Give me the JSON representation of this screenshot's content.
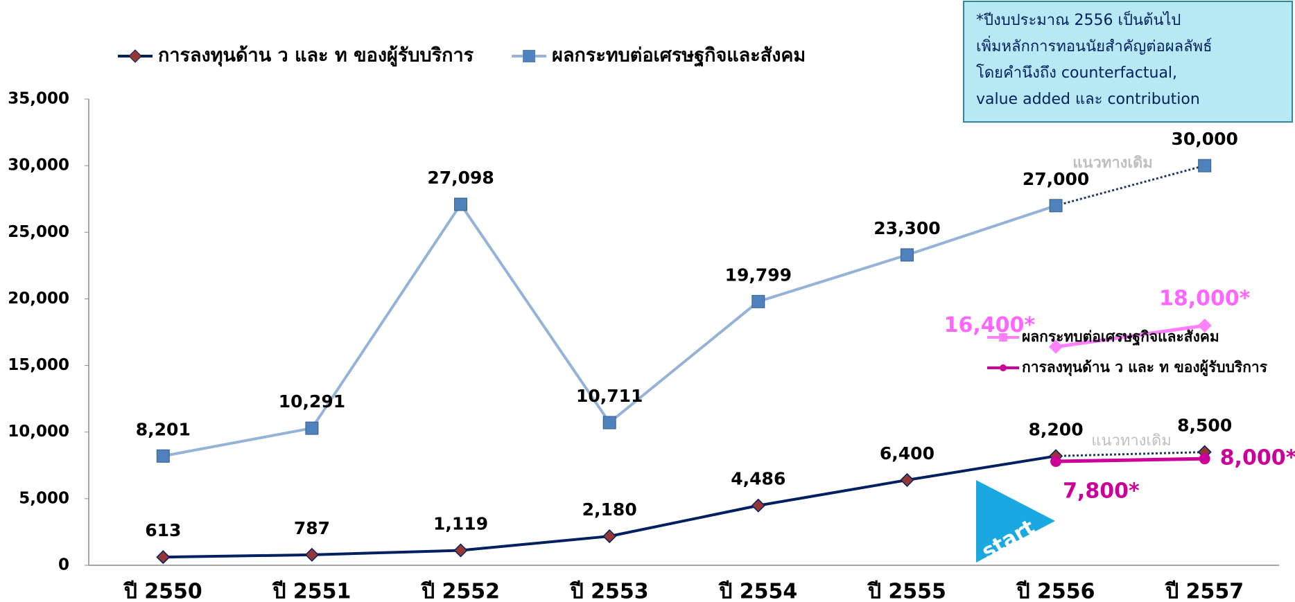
{
  "chart_data": {
    "type": "line",
    "categories": [
      "ปี 2550",
      "ปี 2551",
      "ปี 2552",
      "ปี 2553",
      "ปี 2554",
      "ปี 2555",
      "ปี 2556",
      "ปี 2557"
    ],
    "ylim": [
      0,
      35000
    ],
    "yticks": [
      0,
      {
        "value": 5000,
        "label": "5,000"
      },
      {
        "value": 10000,
        "label": "10,000"
      },
      {
        "value": 15000,
        "label": "15,000"
      },
      {
        "value": 20000,
        "label": "20,000"
      },
      {
        "value": 25000,
        "label": "25,000"
      },
      {
        "value": 30000,
        "label": "30,000"
      },
      {
        "value": 35000,
        "label": "35,000"
      }
    ],
    "grid": false,
    "series": [
      {
        "name": "การลงทุนด้าน ว และ ท ของผู้รับบริการ",
        "color": "#002060",
        "marker": "diamond",
        "marker_color": "#953735",
        "legend": "top",
        "dashed_last_segment": true,
        "values": [
          613,
          787,
          1119,
          2180,
          4486,
          6400,
          8200,
          8500
        ],
        "value_labels": [
          "613",
          "787",
          "1,119",
          "2,180",
          "4,486",
          "6,400",
          "8,200",
          "8,500"
        ]
      },
      {
        "name": "ผลกระทบต่อเศรษฐกิจและสังคม",
        "color": "#95b3d7",
        "marker": "square",
        "marker_color": "#4f81bd",
        "legend": "top",
        "dashed_last_segment": true,
        "values": [
          8201,
          10291,
          27098,
          10711,
          19799,
          23300,
          27000,
          30000
        ],
        "value_labels": [
          "8,201",
          "10,291",
          "27,098",
          "10,711",
          "19,799",
          "23,300",
          "27,000",
          "30,000"
        ]
      },
      {
        "name": "ผลกระทบต่อเศรษฐกิจและสังคม",
        "color": "#ff80ff",
        "marker": "diamond",
        "marker_color": "#ff80ff",
        "legend": "right",
        "values": [
          null,
          null,
          null,
          null,
          null,
          null,
          16400,
          18000
        ],
        "value_labels": [
          null,
          null,
          null,
          null,
          null,
          null,
          "16,400*",
          "18,000*"
        ]
      },
      {
        "name": "การลงทุนด้าน ว และ ท ของผู้รับบริการ",
        "color": "#cc0099",
        "marker": "circle",
        "marker_color": "#cc0099",
        "legend": "right",
        "values": [
          null,
          null,
          null,
          null,
          null,
          null,
          7800,
          8000
        ],
        "value_labels": [
          null,
          null,
          null,
          null,
          null,
          null,
          "7,800*",
          "8,000*"
        ]
      }
    ],
    "annotations": [
      "แนวทางเดิม",
      "แนวทางเดิม",
      "start"
    ],
    "note": [
      "*ปีงบประมาณ  2556 เป็นต้นไป",
      "เพิ่มหลักการทอนนัยสำคัญต่อผลลัพธ์",
      "โดยคำนึงถึง  counterfactual,",
      "value added และ contribution"
    ]
  }
}
